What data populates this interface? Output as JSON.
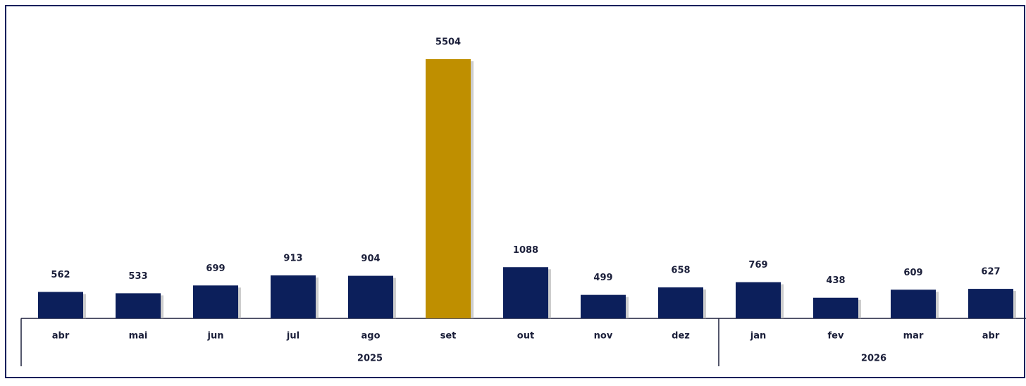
{
  "chart_data": {
    "type": "bar",
    "groups": [
      {
        "label": "2025",
        "categories": [
          "abr",
          "mai",
          "jun",
          "jul",
          "ago",
          "set",
          "out",
          "nov",
          "dez"
        ],
        "values": [
          562,
          533,
          699,
          913,
          904,
          5504,
          1088,
          499,
          658
        ],
        "colors": [
          "#0c1f5b",
          "#0c1f5b",
          "#0c1f5b",
          "#0c1f5b",
          "#0c1f5b",
          "#bf8f00",
          "#0c1f5b",
          "#0c1f5b",
          "#0c1f5b"
        ]
      },
      {
        "label": "2026",
        "categories": [
          "jan",
          "fev",
          "mar",
          "abr"
        ],
        "values": [
          769,
          438,
          609,
          627
        ],
        "colors": [
          "#0c1f5b",
          "#0c1f5b",
          "#0c1f5b",
          "#0c1f5b"
        ]
      }
    ]
  }
}
